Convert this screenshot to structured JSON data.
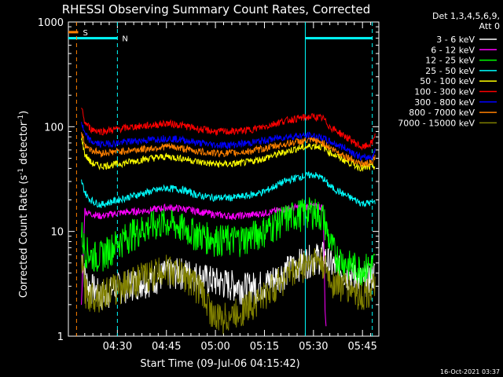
{
  "chart_data": {
    "type": "line",
    "title": "RHESSI Observing Summary Count Rates, Corrected",
    "xlabel": "Start Time (09-Jul-06 04:15:42)",
    "ylabel_main": "Corrected Count Rate (s",
    "ylabel_sup1": "-1",
    "ylabel_mid": " detector",
    "ylabel_sup2": "-1",
    "ylabel_end": ")",
    "y_scale": "log",
    "ylim": [
      1,
      1000
    ],
    "xlim": [
      0,
      95
    ],
    "x_ticks": [
      {
        "t": 15,
        "label": "04:30"
      },
      {
        "t": 30,
        "label": "04:45"
      },
      {
        "t": 45,
        "label": "05:00"
      },
      {
        "t": 60,
        "label": "05:15"
      },
      {
        "t": 75,
        "label": "05:30"
      },
      {
        "t": 90,
        "label": "05:45"
      }
    ],
    "y_ticks": [
      {
        "v": 1,
        "label": "1"
      },
      {
        "v": 10,
        "label": "10"
      },
      {
        "v": 100,
        "label": "100"
      },
      {
        "v": 1000,
        "label": "1000"
      }
    ],
    "legend_header": [
      "Det 1,3,4,5,6,9,",
      "Att 0"
    ],
    "series": [
      {
        "name": "3 - 6 keV",
        "color": "#ffffff",
        "points": [
          [
            4,
            6
          ],
          [
            5,
            4
          ],
          [
            6,
            3
          ],
          [
            7,
            3
          ],
          [
            10,
            2.5
          ],
          [
            15,
            3
          ],
          [
            20,
            3.3
          ],
          [
            25,
            3.6
          ],
          [
            30,
            4
          ],
          [
            35,
            4.2
          ],
          [
            40,
            3.8
          ],
          [
            45,
            3.4
          ],
          [
            50,
            3.2
          ],
          [
            55,
            3
          ],
          [
            60,
            3.2
          ],
          [
            65,
            4
          ],
          [
            70,
            5
          ],
          [
            75,
            5.7
          ],
          [
            78,
            6
          ],
          [
            80,
            5
          ],
          [
            85,
            4
          ],
          [
            90,
            3.5
          ],
          [
            94,
            4
          ]
        ]
      },
      {
        "name": "6 - 12 keV",
        "color": "#ff00ff",
        "points": [
          [
            4,
            2
          ],
          [
            5,
            16
          ],
          [
            6,
            15
          ],
          [
            10,
            14
          ],
          [
            15,
            15
          ],
          [
            20,
            15.5
          ],
          [
            25,
            16
          ],
          [
            30,
            17
          ],
          [
            35,
            16.5
          ],
          [
            40,
            15.5
          ],
          [
            45,
            14.5
          ],
          [
            50,
            14
          ],
          [
            55,
            14.3
          ],
          [
            60,
            15
          ],
          [
            65,
            16
          ],
          [
            70,
            17
          ],
          [
            75,
            17.5
          ],
          [
            78,
            17
          ],
          [
            78.5,
            2
          ],
          [
            79,
            1
          ]
        ]
      },
      {
        "name": "12 - 25 keV",
        "color": "#00ff00",
        "points": [
          [
            4,
            10
          ],
          [
            5,
            7
          ],
          [
            7,
            6
          ],
          [
            10,
            6
          ],
          [
            15,
            8
          ],
          [
            20,
            10
          ],
          [
            25,
            11.5
          ],
          [
            30,
            12.5
          ],
          [
            35,
            11
          ],
          [
            40,
            9.5
          ],
          [
            45,
            8.7
          ],
          [
            50,
            8.5
          ],
          [
            55,
            9
          ],
          [
            60,
            10.5
          ],
          [
            65,
            13
          ],
          [
            70,
            15
          ],
          [
            75,
            16
          ],
          [
            78,
            14
          ],
          [
            80,
            8
          ],
          [
            82,
            6
          ],
          [
            85,
            5
          ],
          [
            90,
            4.5
          ],
          [
            94,
            5
          ]
        ]
      },
      {
        "name": "25 - 50 keV",
        "color": "#00ffff",
        "points": [
          [
            4,
            30
          ],
          [
            5,
            24
          ],
          [
            6,
            21
          ],
          [
            8,
            19
          ],
          [
            10,
            18
          ],
          [
            15,
            20
          ],
          [
            20,
            22
          ],
          [
            25,
            24
          ],
          [
            30,
            26
          ],
          [
            35,
            25
          ],
          [
            40,
            22
          ],
          [
            45,
            21
          ],
          [
            50,
            21
          ],
          [
            55,
            22
          ],
          [
            60,
            24
          ],
          [
            65,
            29
          ],
          [
            70,
            33
          ],
          [
            75,
            35
          ],
          [
            78,
            32
          ],
          [
            80,
            27
          ],
          [
            85,
            22
          ],
          [
            90,
            18.5
          ],
          [
            94,
            19
          ]
        ]
      },
      {
        "name": "50 - 100 keV",
        "color": "#ffff00",
        "points": [
          [
            4,
            80
          ],
          [
            5,
            55
          ],
          [
            7,
            45
          ],
          [
            10,
            42
          ],
          [
            15,
            44
          ],
          [
            20,
            47
          ],
          [
            25,
            50
          ],
          [
            30,
            52
          ],
          [
            35,
            50
          ],
          [
            40,
            46
          ],
          [
            45,
            44
          ],
          [
            50,
            44
          ],
          [
            55,
            46
          ],
          [
            60,
            50
          ],
          [
            65,
            56
          ],
          [
            70,
            62
          ],
          [
            75,
            66
          ],
          [
            78,
            64
          ],
          [
            80,
            57
          ],
          [
            85,
            47
          ],
          [
            90,
            40
          ],
          [
            94,
            42
          ]
        ]
      },
      {
        "name": "100 - 300 keV",
        "color": "#ff0000",
        "points": [
          [
            4,
            150
          ],
          [
            5,
            110
          ],
          [
            7,
            95
          ],
          [
            10,
            90
          ],
          [
            15,
            95
          ],
          [
            20,
            100
          ],
          [
            25,
            103
          ],
          [
            30,
            108
          ],
          [
            35,
            103
          ],
          [
            40,
            95
          ],
          [
            45,
            90
          ],
          [
            50,
            90
          ],
          [
            55,
            93
          ],
          [
            60,
            100
          ],
          [
            65,
            112
          ],
          [
            70,
            120
          ],
          [
            75,
            125
          ],
          [
            78,
            120
          ],
          [
            80,
            100
          ],
          [
            85,
            80
          ],
          [
            90,
            63
          ],
          [
            93,
            70
          ],
          [
            94,
            90
          ]
        ]
      },
      {
        "name": "300 - 800 keV",
        "color": "#0000ff",
        "points": [
          [
            4,
            110
          ],
          [
            5,
            85
          ],
          [
            7,
            72
          ],
          [
            10,
            68
          ],
          [
            15,
            70
          ],
          [
            20,
            73
          ],
          [
            25,
            75
          ],
          [
            30,
            78
          ],
          [
            35,
            75
          ],
          [
            40,
            70
          ],
          [
            45,
            67
          ],
          [
            50,
            67
          ],
          [
            55,
            70
          ],
          [
            60,
            74
          ],
          [
            65,
            79
          ],
          [
            70,
            82
          ],
          [
            75,
            82
          ],
          [
            78,
            78
          ],
          [
            80,
            72
          ],
          [
            85,
            62
          ],
          [
            90,
            50
          ],
          [
            93,
            52
          ],
          [
            94,
            60
          ]
        ]
      },
      {
        "name": "800 - 7000 keV",
        "color": "#ff8000",
        "points": [
          [
            4,
            90
          ],
          [
            5,
            68
          ],
          [
            7,
            60
          ],
          [
            10,
            56
          ],
          [
            15,
            58
          ],
          [
            20,
            60
          ],
          [
            25,
            62
          ],
          [
            30,
            65
          ],
          [
            35,
            62
          ],
          [
            40,
            58
          ],
          [
            45,
            56
          ],
          [
            50,
            56
          ],
          [
            55,
            58
          ],
          [
            60,
            62
          ],
          [
            65,
            67
          ],
          [
            70,
            72
          ],
          [
            75,
            74
          ],
          [
            78,
            70
          ],
          [
            80,
            63
          ],
          [
            85,
            52
          ],
          [
            90,
            44
          ],
          [
            93,
            45
          ],
          [
            94,
            52
          ]
        ]
      },
      {
        "name": "7000 - 15000 keV",
        "color": "#808000",
        "points": [
          [
            4,
            6
          ],
          [
            5,
            3
          ],
          [
            6,
            2.5
          ],
          [
            10,
            2.6
          ],
          [
            15,
            3
          ],
          [
            20,
            3.5
          ],
          [
            25,
            4
          ],
          [
            30,
            4.5
          ],
          [
            35,
            4
          ],
          [
            40,
            3
          ],
          [
            43,
            2
          ],
          [
            45,
            1.5
          ],
          [
            50,
            1.6
          ],
          [
            55,
            2
          ],
          [
            60,
            2.5
          ],
          [
            65,
            3.5
          ],
          [
            70,
            4.5
          ],
          [
            75,
            5.5
          ],
          [
            78,
            5
          ],
          [
            80,
            3.5
          ],
          [
            85,
            3
          ],
          [
            90,
            2.5
          ],
          [
            94,
            3
          ]
        ]
      }
    ],
    "markers": [
      {
        "label": "S",
        "t_start": 0,
        "t_end": 3,
        "color": "#ff8000",
        "y": 800
      },
      {
        "label": "N",
        "t_start": 0,
        "t_end": 15,
        "color": "#00ffff",
        "y": 700
      },
      {
        "label": "",
        "t_start": 72.5,
        "t_end": 93,
        "color": "#00ffff",
        "y": 700
      }
    ],
    "vlines": [
      {
        "t": 2.5,
        "color": "#ff8000",
        "dashed": true
      },
      {
        "t": 15,
        "color": "#00ffff",
        "dashed": true
      },
      {
        "t": 72.5,
        "color": "#00ffff",
        "dashed": false
      },
      {
        "t": 93,
        "color": "#00ffff",
        "dashed": true
      }
    ]
  },
  "footer_timestamp": "16-Oct-2021 03:37"
}
